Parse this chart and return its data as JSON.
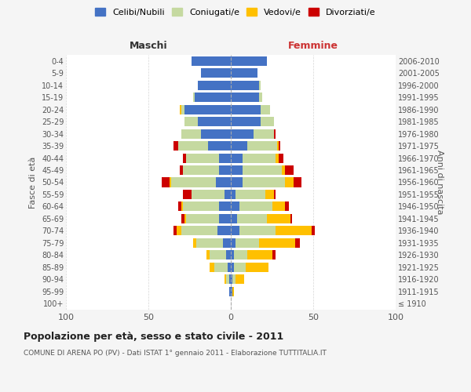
{
  "age_groups": [
    "100+",
    "95-99",
    "90-94",
    "85-89",
    "80-84",
    "75-79",
    "70-74",
    "65-69",
    "60-64",
    "55-59",
    "50-54",
    "45-49",
    "40-44",
    "35-39",
    "30-34",
    "25-29",
    "20-24",
    "15-19",
    "10-14",
    "5-9",
    "0-4"
  ],
  "birth_years": [
    "≤ 1910",
    "1911-1915",
    "1916-1920",
    "1921-1925",
    "1926-1930",
    "1931-1935",
    "1936-1940",
    "1941-1945",
    "1946-1950",
    "1951-1955",
    "1956-1960",
    "1961-1965",
    "1966-1970",
    "1971-1975",
    "1976-1980",
    "1981-1985",
    "1986-1990",
    "1991-1995",
    "1996-2000",
    "2001-2005",
    "2006-2010"
  ],
  "male": {
    "celibi": [
      0,
      1,
      1,
      2,
      3,
      5,
      8,
      7,
      7,
      4,
      9,
      7,
      7,
      14,
      18,
      20,
      28,
      22,
      20,
      18,
      24
    ],
    "coniugati": [
      0,
      0,
      2,
      8,
      10,
      16,
      22,
      20,
      22,
      20,
      27,
      22,
      20,
      18,
      12,
      8,
      2,
      1,
      0,
      0,
      0
    ],
    "vedovi": [
      0,
      0,
      1,
      3,
      2,
      2,
      3,
      1,
      1,
      0,
      1,
      0,
      0,
      0,
      0,
      0,
      1,
      0,
      0,
      0,
      0
    ],
    "divorziati": [
      0,
      0,
      0,
      0,
      0,
      0,
      2,
      2,
      2,
      5,
      5,
      2,
      2,
      3,
      0,
      0,
      0,
      0,
      0,
      0,
      0
    ]
  },
  "female": {
    "nubili": [
      0,
      1,
      1,
      2,
      2,
      3,
      5,
      4,
      5,
      3,
      7,
      7,
      7,
      10,
      14,
      18,
      18,
      17,
      17,
      16,
      22
    ],
    "coniugate": [
      0,
      0,
      2,
      7,
      8,
      14,
      22,
      18,
      20,
      18,
      26,
      24,
      20,
      18,
      12,
      8,
      6,
      2,
      1,
      0,
      0
    ],
    "vedove": [
      0,
      1,
      5,
      14,
      15,
      22,
      22,
      14,
      8,
      5,
      5,
      2,
      2,
      1,
      0,
      0,
      0,
      0,
      0,
      0,
      0
    ],
    "divorziate": [
      0,
      0,
      0,
      0,
      2,
      3,
      2,
      1,
      2,
      1,
      5,
      5,
      3,
      1,
      1,
      0,
      0,
      0,
      0,
      0,
      0
    ]
  },
  "colors": {
    "celibi": "#4472c4",
    "coniugati": "#c5d9a0",
    "vedovi": "#ffc000",
    "divorziati": "#cc0000"
  },
  "xlim": 100,
  "title": "Popolazione per età, sesso e stato civile - 2011",
  "subtitle": "COMUNE DI ARENA PO (PV) - Dati ISTAT 1° gennaio 2011 - Elaborazione TUTTITALIA.IT",
  "ylabel_left": "Fasce di età",
  "ylabel_right": "Anni di nascita",
  "xlabel_left": "Maschi",
  "xlabel_right": "Femmine",
  "bg_color": "#f5f5f5",
  "plot_bg_color": "#ffffff",
  "grid_color": "#cccccc"
}
